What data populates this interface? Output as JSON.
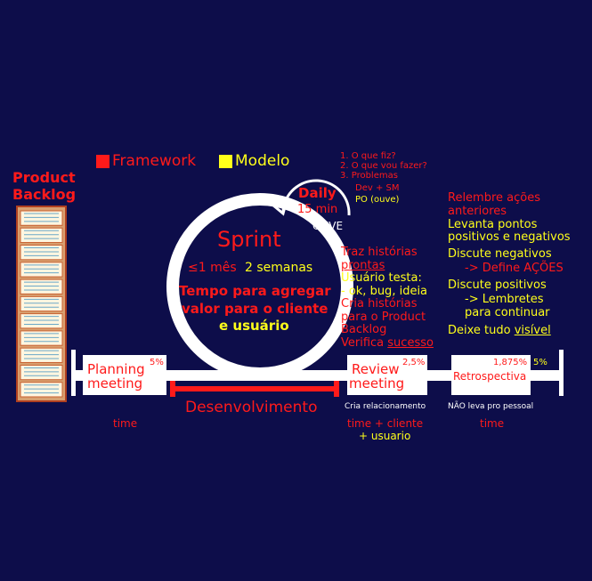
{
  "legend": {
    "framework": "Framework",
    "modelo": "Modelo",
    "framework_color": "#ff1a1a",
    "modelo_color": "#ffff1a"
  },
  "product_backlog": {
    "title_line1": "Product",
    "title_line2": "Backlog",
    "item_count": 11
  },
  "daily": {
    "title": "Daily",
    "duration": "15 min",
    "ouve": "OUVE",
    "questions": [
      "1. O que fiz?",
      "2. O que vou fazer?",
      "3. Problemas"
    ],
    "participants": "Dev + SM",
    "po": "PO (ouve)"
  },
  "sprint": {
    "title": "Sprint",
    "duration_a": "≤1 mês",
    "duration_b": "2 semanas",
    "goal_line1": "Tempo para agregar",
    "goal_line2": "valor para o cliente",
    "goal_line3": "e usuário"
  },
  "review_notes": {
    "l1": "Traz histórias",
    "l2": "prontas",
    "l3": "Usuário testa:",
    "l4": "- ok, bug, ideia",
    "l5": "Cria histórias",
    "l6": "para o Product",
    "l7": "Backlog",
    "l8a": "Verifica ",
    "l8b": "sucesso"
  },
  "retro_notes": {
    "l1": "Relembre ações",
    "l2": "anteriores",
    "l3": "Levanta pontos",
    "l4": "positivos e negativos",
    "l5": "Discute negativos",
    "l6": "-> Define AÇÕES",
    "l7": "Discute positivos",
    "l8": "-> Lembretes",
    "l9": "para continuar",
    "l10a": "Deixe tudo ",
    "l10b": "visível"
  },
  "timeline": {
    "planning_l1": "Planning",
    "planning_l2": "meeting",
    "planning_pct": "5%",
    "review_l1": "Review",
    "review_l2": "meeting",
    "review_pct": "2,5%",
    "retro": "Retrospectiva",
    "retro_pct_a": "1,875%",
    "retro_pct_b": "5%",
    "desenvolvimento": "Desenvolvimento",
    "review_sub": "Cria relacionamento",
    "retro_sub": "NÃO leva pro pessoal",
    "time_planning": "time",
    "time_review_l1": "time + cliente",
    "time_review_l2": "+ usuario",
    "time_retro": "time"
  }
}
